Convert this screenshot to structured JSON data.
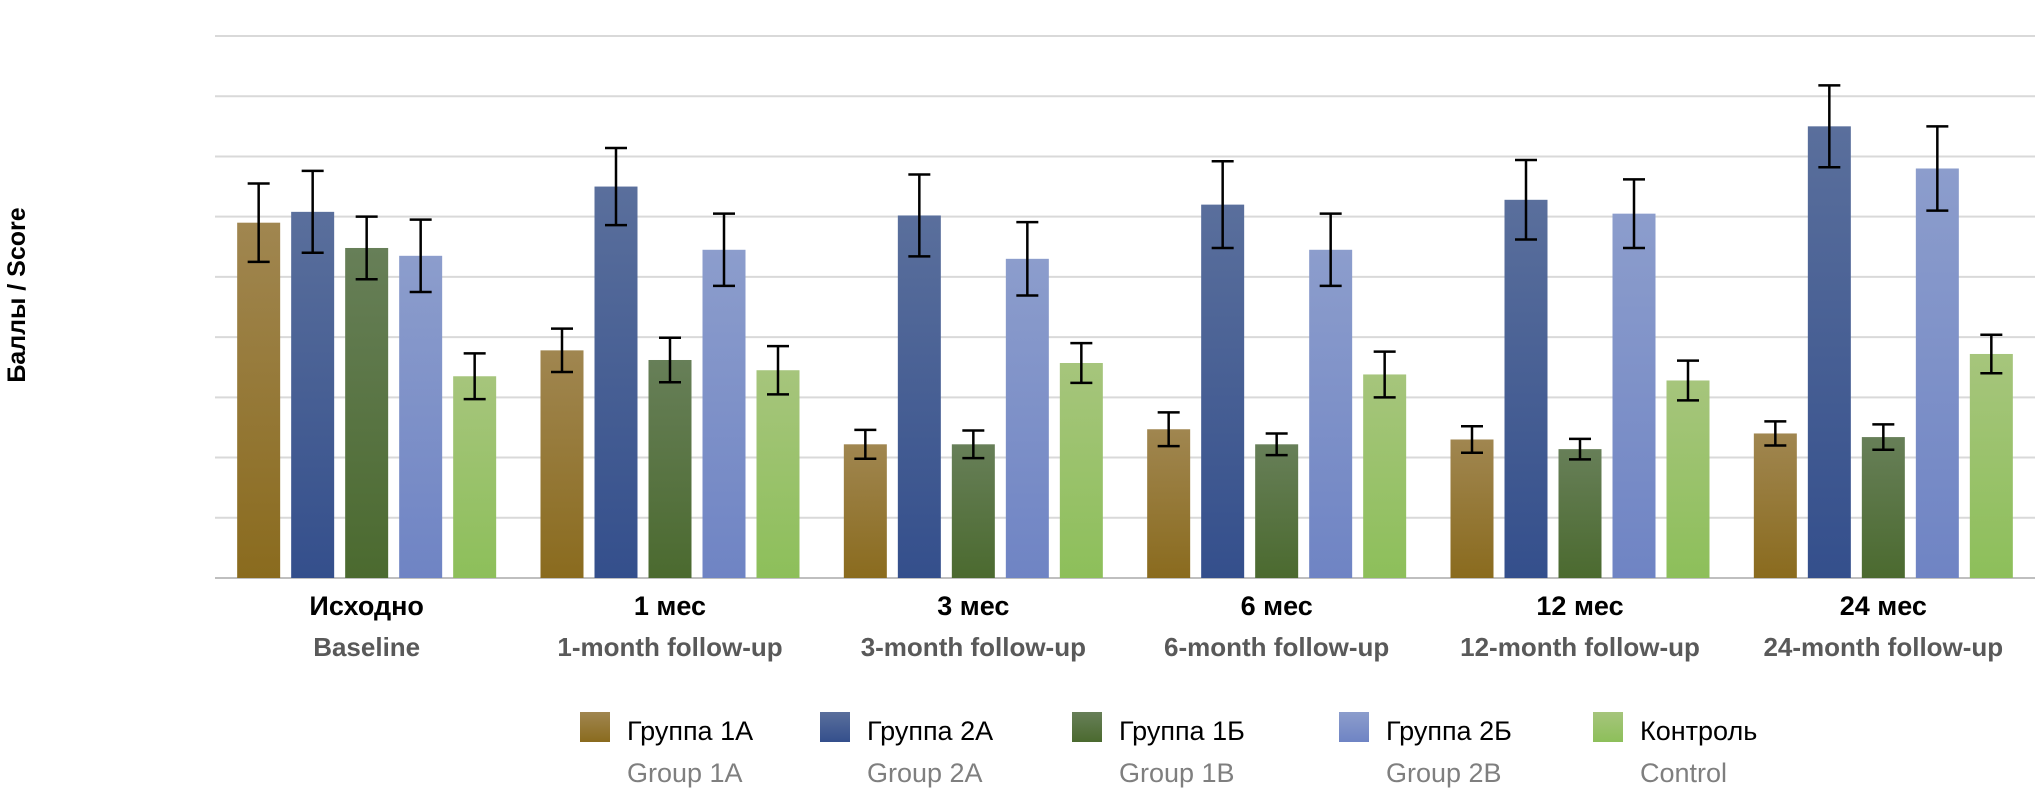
{
  "chart_data": {
    "type": "bar",
    "ylabel": "Баллы / Score",
    "ylim": [
      0,
      9
    ],
    "grid": true,
    "legend_position": "bottom",
    "categories": [
      {
        "ru": "Исходно",
        "en": "Baseline"
      },
      {
        "ru": "1 мес",
        "en": "1-month follow-up"
      },
      {
        "ru": "3 мес",
        "en": "3-month follow-up"
      },
      {
        "ru": "6 мес",
        "en": "6-month follow-up"
      },
      {
        "ru": "12 мес",
        "en": "12-month follow-up"
      },
      {
        "ru": "24 мес",
        "en": "24-month follow-up"
      }
    ],
    "series": [
      {
        "name_ru": "Группа 1А",
        "name_en": "Group 1A",
        "color_top": "#a08650",
        "color_bottom": "#8a6b1e",
        "values": [
          5.9,
          3.78,
          2.22,
          2.47,
          2.3,
          2.4
        ],
        "errors": [
          0.65,
          0.36,
          0.24,
          0.28,
          0.22,
          0.2
        ]
      },
      {
        "name_ru": "Группа 2А",
        "name_en": "Group 2A",
        "color_top": "#5a6f9c",
        "color_bottom": "#344f8c",
        "values": [
          6.08,
          6.5,
          6.02,
          6.2,
          6.28,
          7.5
        ],
        "errors": [
          0.68,
          0.64,
          0.68,
          0.72,
          0.66,
          0.68
        ]
      },
      {
        "name_ru": "Группа 1Б",
        "name_en": "Group 1B",
        "color_top": "#677f58",
        "color_bottom": "#4b6a2f",
        "values": [
          5.48,
          3.62,
          2.22,
          2.22,
          2.14,
          2.34
        ],
        "errors": [
          0.52,
          0.37,
          0.23,
          0.18,
          0.17,
          0.21
        ]
      },
      {
        "name_ru": "Группа 2Б",
        "name_en": "Group 2B",
        "color_top": "#8c9dcc",
        "color_bottom": "#6f84c4",
        "values": [
          5.35,
          5.45,
          5.3,
          5.45,
          6.05,
          6.8
        ],
        "errors": [
          0.6,
          0.6,
          0.61,
          0.6,
          0.57,
          0.7
        ]
      },
      {
        "name_ru": "Контроль",
        "name_en": "Control",
        "color_top": "#a6c57c",
        "color_bottom": "#8dbf5a",
        "values": [
          3.35,
          3.45,
          3.57,
          3.38,
          3.28,
          3.72
        ],
        "errors": [
          0.38,
          0.4,
          0.33,
          0.38,
          0.33,
          0.32
        ]
      }
    ]
  }
}
